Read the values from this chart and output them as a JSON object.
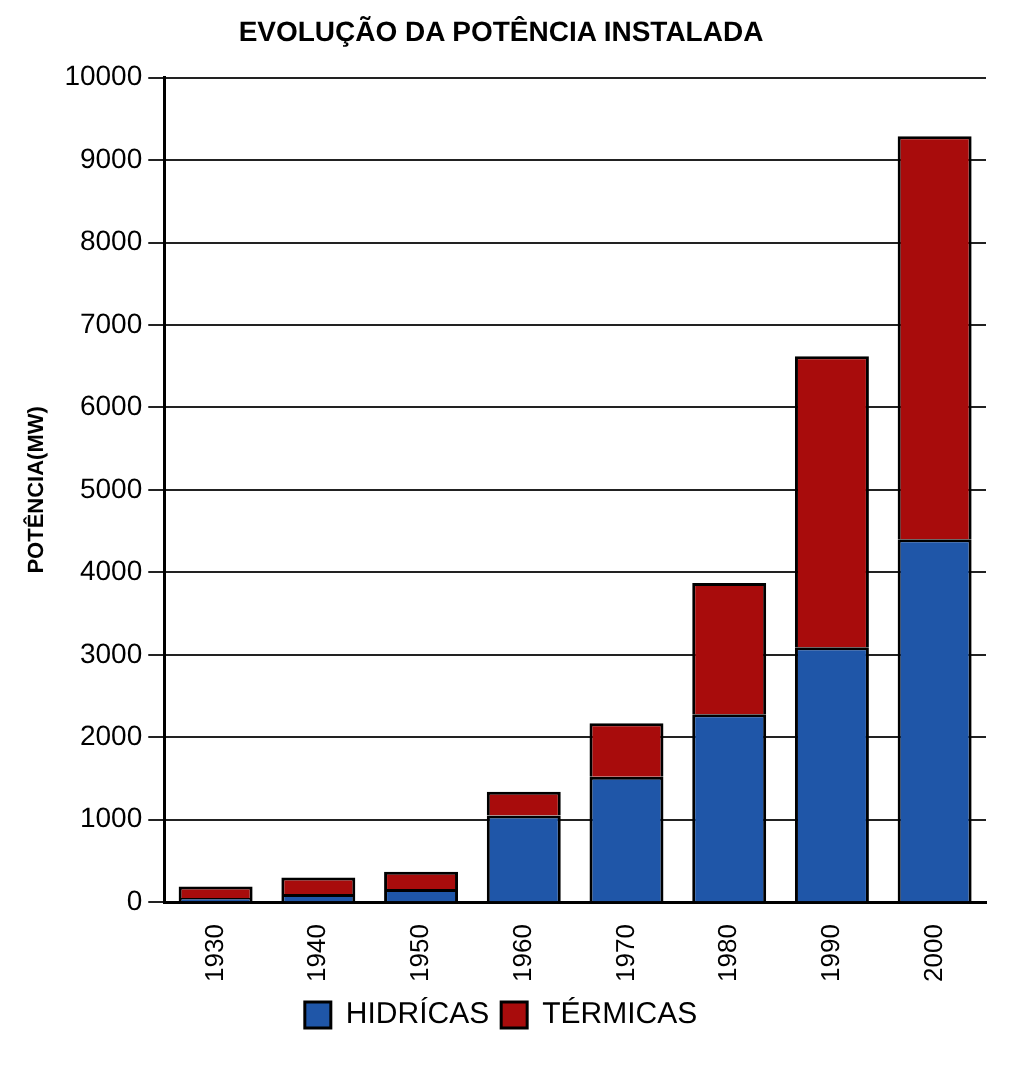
{
  "chart_data": {
    "type": "bar",
    "title": "EVOLUÇÃO DA POTÊNCIA INSTALADA",
    "ylabel": "POTÊNCIA(MW)",
    "categories": [
      "1930",
      "1940",
      "1950",
      "1960",
      "1970",
      "1980",
      "1990",
      "2000"
    ],
    "series": [
      {
        "name": "HIDRÍCAS",
        "color": "#1f56a8",
        "values": [
          50,
          100,
          160,
          1050,
          1520,
          2280,
          3090,
          4400
        ]
      },
      {
        "name": "TÉRMICAS",
        "color": "#a80c0c",
        "values": [
          140,
          200,
          210,
          290,
          650,
          1590,
          3530,
          4890
        ]
      }
    ],
    "stacked": true,
    "ylim": [
      0,
      10000
    ],
    "yticks": [
      0,
      1000,
      2000,
      3000,
      4000,
      5000,
      6000,
      7000,
      8000,
      9000,
      10000
    ],
    "grid": "y",
    "legend": "bottom"
  }
}
